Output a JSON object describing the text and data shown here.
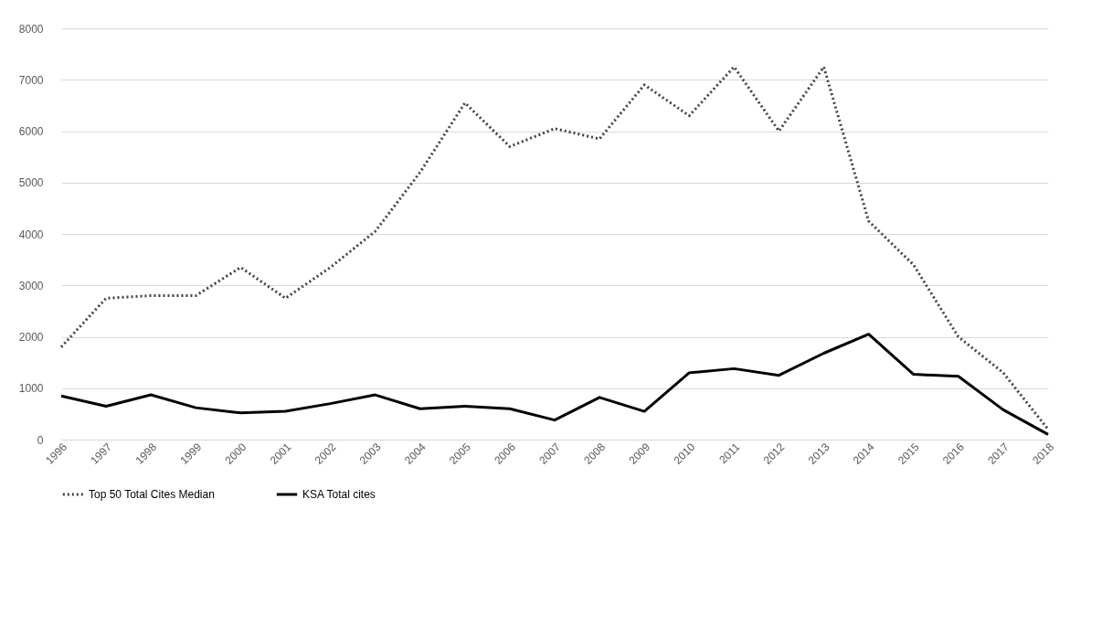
{
  "chart_data": {
    "type": "line",
    "categories": [
      "1996",
      "1997",
      "1998",
      "1999",
      "2000",
      "2001",
      "2002",
      "2003",
      "2004",
      "2005",
      "2006",
      "2007",
      "2008",
      "2009",
      "2010",
      "2011",
      "2012",
      "2013",
      "2014",
      "2015",
      "2016",
      "2017",
      "2018"
    ],
    "series": [
      {
        "name": "Top 50 Total Cites Median",
        "color": "#404040",
        "line_style": "dotted",
        "values": [
          1800,
          2750,
          2800,
          2800,
          3350,
          2750,
          3350,
          4050,
          5200,
          6550,
          5700,
          6050,
          5850,
          6900,
          6300,
          7250,
          6000,
          7250,
          4250,
          3400,
          2000,
          1300,
          200
        ]
      },
      {
        "name": "KSA Total cites",
        "color": "#000000",
        "line_style": "solid",
        "values": [
          850,
          650,
          870,
          620,
          520,
          550,
          700,
          870,
          600,
          650,
          600,
          380,
          820,
          550,
          1300,
          1380,
          1250,
          1680,
          2050,
          1270,
          1230,
          580,
          100
        ]
      }
    ],
    "ylim": [
      0,
      8000
    ],
    "yticks": [
      0,
      1000,
      2000,
      3000,
      4000,
      5000,
      6000,
      7000,
      8000
    ],
    "grid": "y",
    "legend": "bottom",
    "marker": "none"
  }
}
